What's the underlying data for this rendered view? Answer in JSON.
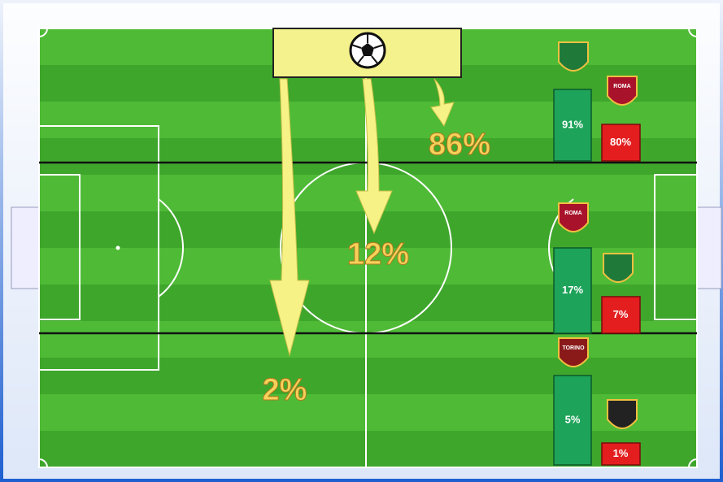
{
  "zones": [
    {
      "share": "86%",
      "green_bar": "91%",
      "red_bar": "80%",
      "crest_text": "ROMA"
    },
    {
      "share": "12%",
      "green_bar": "17%",
      "red_bar": "7%",
      "crest_text": "ROMA"
    },
    {
      "share": "2%",
      "green_bar": "5%",
      "red_bar": "1%",
      "crest_text": "TORINO"
    }
  ]
}
